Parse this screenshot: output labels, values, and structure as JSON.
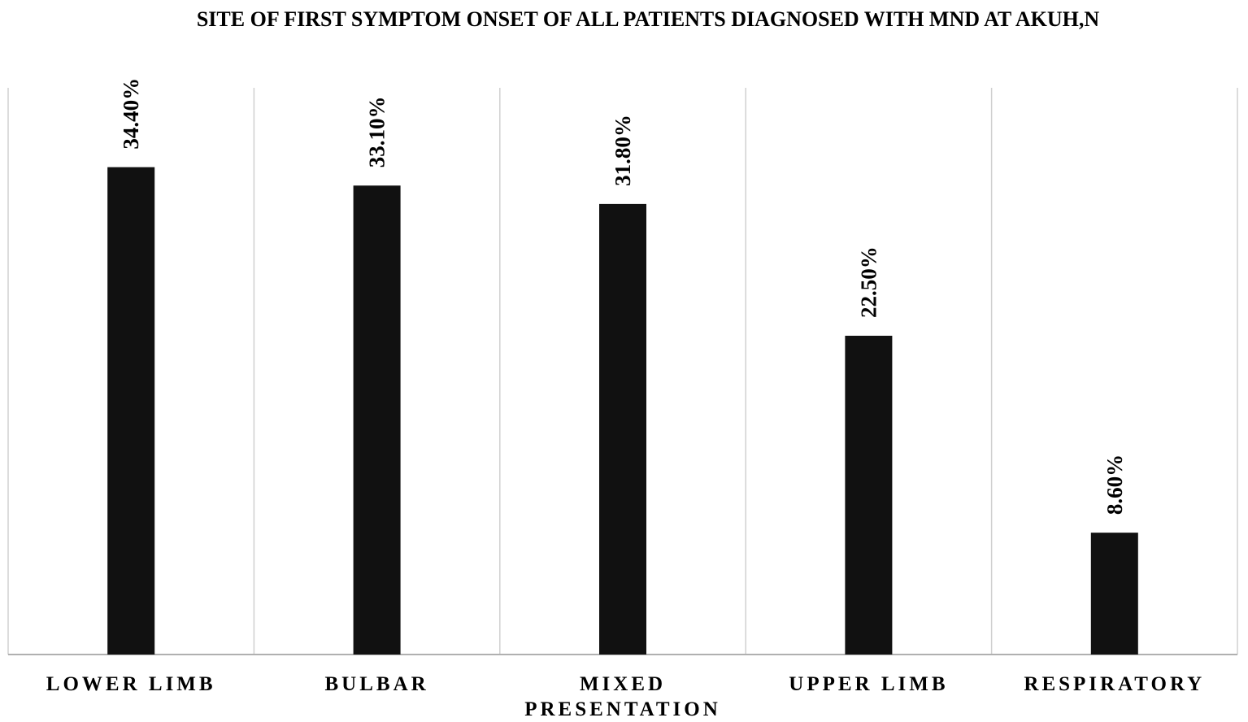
{
  "chart_data": {
    "type": "bar",
    "title": "SITE OF FIRST SYMPTOM ONSET OF ALL PATIENTS DIAGNOSED WITH MND AT AKUH,N",
    "categories": [
      "LOWER LIMB",
      "BULBAR",
      "MIXED PRESENTATION",
      "UPPER LIMB",
      "RESPIRATORY"
    ],
    "category_lines": [
      [
        "LOWER LIMB"
      ],
      [
        "BULBAR"
      ],
      [
        "MIXED",
        "PRESENTATION"
      ],
      [
        "UPPER LIMB"
      ],
      [
        "RESPIRATORY"
      ]
    ],
    "values": [
      34.4,
      33.1,
      31.8,
      22.5,
      8.6
    ],
    "value_labels": [
      "34.40%",
      "33.10%",
      "31.80%",
      "22.50%",
      "8.60%"
    ],
    "ylim": [
      0,
      40
    ],
    "xlabel": "",
    "ylabel": "",
    "grid": "vertical category separators",
    "legend": "none",
    "bar_color": "#111111",
    "grid_color": "#d0d0d0",
    "axis_color": "#b0b0b0"
  }
}
